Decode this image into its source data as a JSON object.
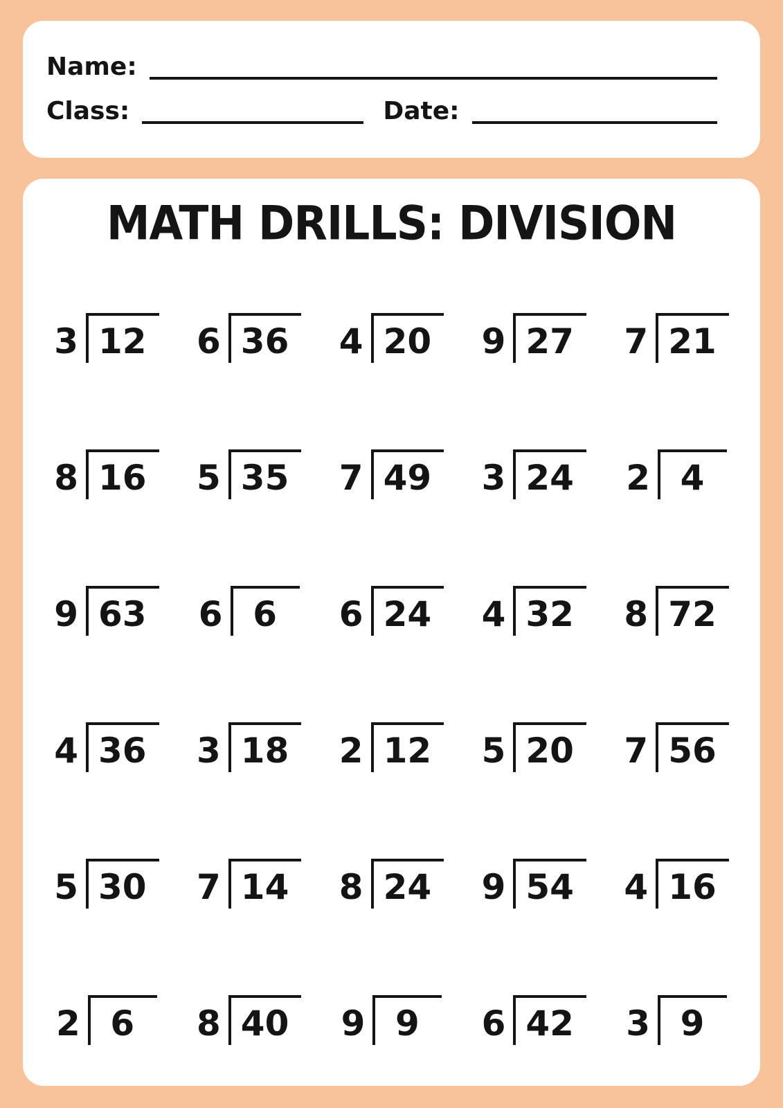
{
  "page": {
    "background_color": "#F8C39A",
    "card_color": "#FFFFFF",
    "ink_color": "#141414"
  },
  "header": {
    "name_label": "Name:",
    "class_label": "Class:",
    "date_label": "Date:"
  },
  "title": "MATH DRILLS: DIVISION",
  "problems": [
    {
      "divisor": "3",
      "dividend": "12"
    },
    {
      "divisor": "6",
      "dividend": "36"
    },
    {
      "divisor": "4",
      "dividend": "20"
    },
    {
      "divisor": "9",
      "dividend": "27"
    },
    {
      "divisor": "7",
      "dividend": "21"
    },
    {
      "divisor": "8",
      "dividend": "16"
    },
    {
      "divisor": "5",
      "dividend": "35"
    },
    {
      "divisor": "7",
      "dividend": "49"
    },
    {
      "divisor": "3",
      "dividend": "24"
    },
    {
      "divisor": "2",
      "dividend": "4"
    },
    {
      "divisor": "9",
      "dividend": "63"
    },
    {
      "divisor": "6",
      "dividend": "6"
    },
    {
      "divisor": "6",
      "dividend": "24"
    },
    {
      "divisor": "4",
      "dividend": "32"
    },
    {
      "divisor": "8",
      "dividend": "72"
    },
    {
      "divisor": "4",
      "dividend": "36"
    },
    {
      "divisor": "3",
      "dividend": "18"
    },
    {
      "divisor": "2",
      "dividend": "12"
    },
    {
      "divisor": "5",
      "dividend": "20"
    },
    {
      "divisor": "7",
      "dividend": "56"
    },
    {
      "divisor": "5",
      "dividend": "30"
    },
    {
      "divisor": "7",
      "dividend": "14"
    },
    {
      "divisor": "8",
      "dividend": "24"
    },
    {
      "divisor": "9",
      "dividend": "54"
    },
    {
      "divisor": "4",
      "dividend": "16"
    },
    {
      "divisor": "2",
      "dividend": "6"
    },
    {
      "divisor": "8",
      "dividend": "40"
    },
    {
      "divisor": "9",
      "dividend": "9"
    },
    {
      "divisor": "6",
      "dividend": "42"
    },
    {
      "divisor": "3",
      "dividend": "9"
    }
  ]
}
